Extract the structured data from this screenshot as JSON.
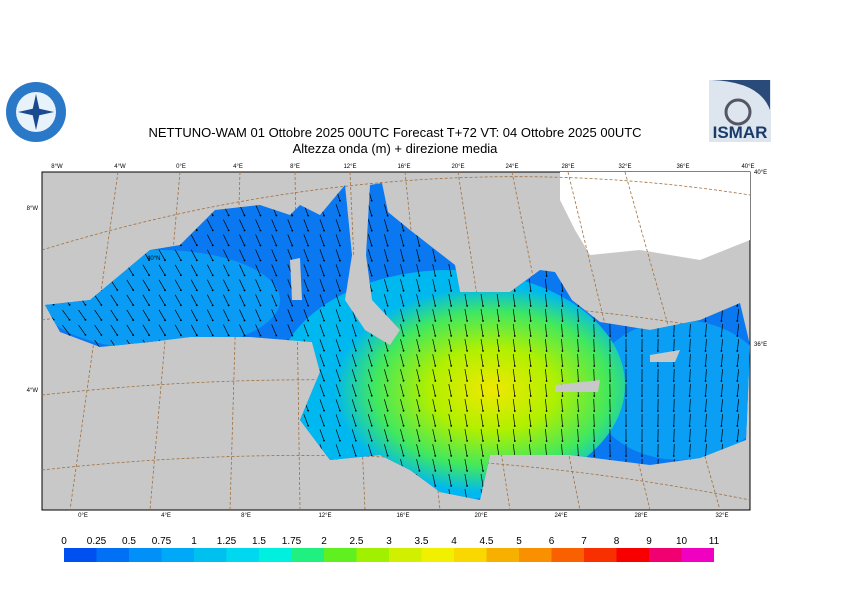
{
  "header": {
    "title": "NETTUNO-WAM  01  Ottobre  2025 00UTC Forecast T+72 VT: 04  Ottobre  2025 00UTC",
    "subtitle": "Altezza onda (m) + direzione media",
    "logo_right": "ISMAR"
  },
  "map": {
    "top_labels": [
      "8°W",
      "4°W",
      "0°E",
      "4°E",
      "8°E",
      "12°E",
      "16°E",
      "20°E",
      "24°E",
      "28°E",
      "32°E",
      "36°E",
      "40°E"
    ],
    "bottom_labels": [
      "0°E",
      "4°E",
      "8°E",
      "12°E",
      "16°E",
      "20°E",
      "24°E",
      "28°E",
      "32°E"
    ],
    "left_labels": [
      "8°W",
      "4°W"
    ],
    "right_labels": [
      "40°E",
      "36°E"
    ],
    "inner_label": "40°N"
  },
  "legend": {
    "levels": [
      0,
      0.25,
      0.5,
      0.75,
      1,
      1.25,
      1.5,
      1.75,
      2,
      2.5,
      3,
      3.5,
      4,
      4.5,
      5,
      6,
      7,
      8,
      9,
      10,
      11
    ],
    "colors": [
      "#0050f0",
      "#0070f5",
      "#0090f8",
      "#00a8f8",
      "#00c0f0",
      "#00d8f0",
      "#00f0e0",
      "#20f080",
      "#60f020",
      "#a0f000",
      "#d0f000",
      "#f0f000",
      "#f8d800",
      "#f8b000",
      "#f89000",
      "#f86000",
      "#f83000",
      "#f80000",
      "#f00070",
      "#f000c0"
    ]
  }
}
